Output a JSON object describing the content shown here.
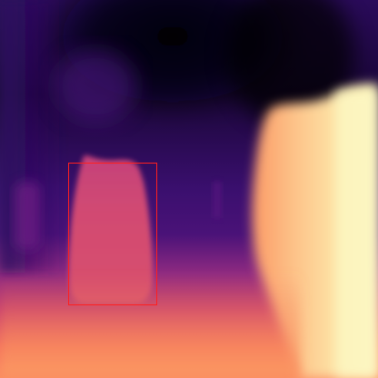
{
  "image": {
    "kind": "depth-map",
    "colormap": "magma",
    "colors": {
      "near": "#fcfdbf",
      "near_mid": "#fd9a6a",
      "mid": "#de4968",
      "mid_far": "#8c2981",
      "far": "#3b0f70",
      "farthest": "#000004"
    },
    "annotation": {
      "shape": "rectangle",
      "stroke_color": "#ff1f1f"
    }
  }
}
